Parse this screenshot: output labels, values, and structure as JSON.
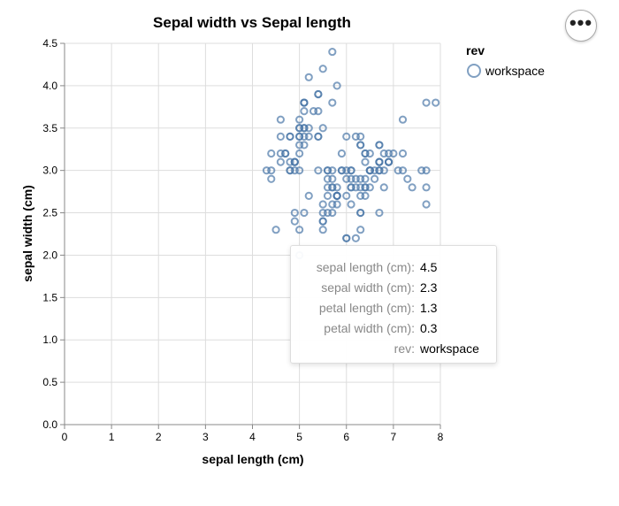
{
  "chart_data": {
    "type": "scatter",
    "title": "Sepal width vs Sepal length",
    "xlabel": "sepal length (cm)",
    "ylabel": "sepal width (cm)",
    "xlim": [
      0,
      8
    ],
    "ylim": [
      0,
      4.5
    ],
    "xticks": [
      "0",
      "1",
      "2",
      "3",
      "4",
      "5",
      "6",
      "7",
      "8"
    ],
    "yticks": [
      "0.0",
      "0.5",
      "1.0",
      "1.5",
      "2.0",
      "2.5",
      "3.0",
      "3.5",
      "4.0",
      "4.5"
    ],
    "grid": true,
    "color": "#4c78a8",
    "legend": {
      "title": "rev",
      "entries": [
        "workspace"
      ],
      "placement": "right"
    },
    "series": [
      {
        "name": "workspace",
        "points": [
          [
            5.1,
            3.5
          ],
          [
            4.9,
            3.0
          ],
          [
            4.7,
            3.2
          ],
          [
            4.6,
            3.1
          ],
          [
            5.0,
            3.6
          ],
          [
            5.4,
            3.9
          ],
          [
            4.6,
            3.4
          ],
          [
            5.0,
            3.4
          ],
          [
            4.4,
            2.9
          ],
          [
            4.9,
            3.1
          ],
          [
            5.4,
            3.7
          ],
          [
            4.8,
            3.4
          ],
          [
            4.8,
            3.0
          ],
          [
            4.3,
            3.0
          ],
          [
            5.8,
            4.0
          ],
          [
            5.7,
            4.4
          ],
          [
            5.4,
            3.9
          ],
          [
            5.1,
            3.5
          ],
          [
            5.7,
            3.8
          ],
          [
            5.1,
            3.8
          ],
          [
            5.4,
            3.4
          ],
          [
            5.1,
            3.7
          ],
          [
            4.6,
            3.6
          ],
          [
            5.1,
            3.3
          ],
          [
            4.8,
            3.4
          ],
          [
            5.0,
            3.0
          ],
          [
            5.0,
            3.4
          ],
          [
            5.2,
            3.5
          ],
          [
            5.2,
            3.4
          ],
          [
            4.7,
            3.2
          ],
          [
            4.8,
            3.1
          ],
          [
            5.4,
            3.4
          ],
          [
            5.2,
            4.1
          ],
          [
            5.5,
            4.2
          ],
          [
            4.9,
            3.1
          ],
          [
            5.0,
            3.2
          ],
          [
            5.5,
            3.5
          ],
          [
            4.9,
            3.1
          ],
          [
            4.4,
            3.0
          ],
          [
            5.1,
            3.4
          ],
          [
            5.0,
            3.5
          ],
          [
            4.5,
            2.3
          ],
          [
            4.4,
            3.2
          ],
          [
            5.0,
            3.5
          ],
          [
            5.1,
            3.8
          ],
          [
            4.8,
            3.0
          ],
          [
            5.1,
            3.8
          ],
          [
            4.6,
            3.2
          ],
          [
            5.3,
            3.7
          ],
          [
            5.0,
            3.3
          ],
          [
            7.0,
            3.2
          ],
          [
            6.4,
            3.2
          ],
          [
            6.9,
            3.1
          ],
          [
            5.5,
            2.3
          ],
          [
            6.5,
            2.8
          ],
          [
            5.7,
            2.8
          ],
          [
            6.3,
            3.3
          ],
          [
            4.9,
            2.4
          ],
          [
            6.6,
            2.9
          ],
          [
            5.2,
            2.7
          ],
          [
            5.0,
            2.0
          ],
          [
            5.9,
            3.0
          ],
          [
            6.0,
            2.2
          ],
          [
            6.1,
            2.9
          ],
          [
            5.6,
            2.9
          ],
          [
            6.7,
            3.1
          ],
          [
            5.6,
            3.0
          ],
          [
            5.8,
            2.7
          ],
          [
            6.2,
            2.2
          ],
          [
            5.6,
            2.5
          ],
          [
            5.9,
            3.2
          ],
          [
            6.1,
            2.8
          ],
          [
            6.3,
            2.5
          ],
          [
            6.1,
            2.8
          ],
          [
            6.4,
            2.9
          ],
          [
            6.6,
            3.0
          ],
          [
            6.8,
            2.8
          ],
          [
            6.7,
            3.0
          ],
          [
            6.0,
            2.9
          ],
          [
            5.7,
            2.6
          ],
          [
            5.5,
            2.4
          ],
          [
            5.5,
            2.4
          ],
          [
            5.8,
            2.7
          ],
          [
            6.0,
            2.7
          ],
          [
            5.4,
            3.0
          ],
          [
            6.0,
            3.4
          ],
          [
            6.7,
            3.1
          ],
          [
            6.3,
            2.3
          ],
          [
            5.6,
            3.0
          ],
          [
            5.5,
            2.5
          ],
          [
            5.5,
            2.6
          ],
          [
            6.1,
            3.0
          ],
          [
            5.8,
            2.6
          ],
          [
            5.0,
            2.3
          ],
          [
            5.6,
            2.7
          ],
          [
            5.7,
            3.0
          ],
          [
            5.7,
            2.9
          ],
          [
            6.2,
            2.9
          ],
          [
            5.1,
            2.5
          ],
          [
            5.7,
            2.8
          ],
          [
            6.3,
            3.3
          ],
          [
            5.8,
            2.7
          ],
          [
            7.1,
            3.0
          ],
          [
            6.3,
            2.9
          ],
          [
            6.5,
            3.0
          ],
          [
            7.6,
            3.0
          ],
          [
            4.9,
            2.5
          ],
          [
            7.3,
            2.9
          ],
          [
            6.7,
            2.5
          ],
          [
            7.2,
            3.6
          ],
          [
            6.5,
            3.2
          ],
          [
            6.4,
            2.7
          ],
          [
            6.8,
            3.0
          ],
          [
            5.7,
            2.5
          ],
          [
            5.8,
            2.8
          ],
          [
            6.4,
            3.2
          ],
          [
            6.5,
            3.0
          ],
          [
            7.7,
            3.8
          ],
          [
            7.7,
            2.6
          ],
          [
            6.0,
            2.2
          ],
          [
            6.9,
            3.2
          ],
          [
            5.6,
            2.8
          ],
          [
            7.7,
            2.8
          ],
          [
            6.3,
            2.7
          ],
          [
            6.7,
            3.3
          ],
          [
            7.2,
            3.2
          ],
          [
            6.2,
            2.8
          ],
          [
            6.1,
            3.0
          ],
          [
            6.4,
            2.8
          ],
          [
            7.2,
            3.0
          ],
          [
            7.4,
            2.8
          ],
          [
            7.9,
            3.8
          ],
          [
            6.4,
            2.8
          ],
          [
            6.3,
            2.8
          ],
          [
            6.1,
            2.6
          ],
          [
            7.7,
            3.0
          ],
          [
            6.3,
            3.4
          ],
          [
            6.4,
            3.1
          ],
          [
            6.0,
            3.0
          ],
          [
            6.9,
            3.1
          ],
          [
            6.7,
            3.1
          ],
          [
            6.9,
            3.1
          ],
          [
            5.8,
            2.7
          ],
          [
            6.8,
            3.2
          ],
          [
            6.7,
            3.3
          ],
          [
            6.7,
            3.0
          ],
          [
            6.3,
            2.5
          ],
          [
            6.5,
            3.0
          ],
          [
            6.2,
            3.4
          ],
          [
            5.9,
            3.0
          ]
        ]
      }
    ]
  },
  "tooltip": {
    "rows": [
      {
        "key": "sepal length (cm):",
        "value": "4.5"
      },
      {
        "key": "sepal width (cm):",
        "value": "2.3"
      },
      {
        "key": "petal length (cm):",
        "value": "1.3"
      },
      {
        "key": "petal width (cm):",
        "value": "0.3"
      },
      {
        "key": "rev:",
        "value": "workspace"
      }
    ]
  },
  "menu": {
    "label": "•••",
    "icon": "more-horizontal-icon"
  }
}
